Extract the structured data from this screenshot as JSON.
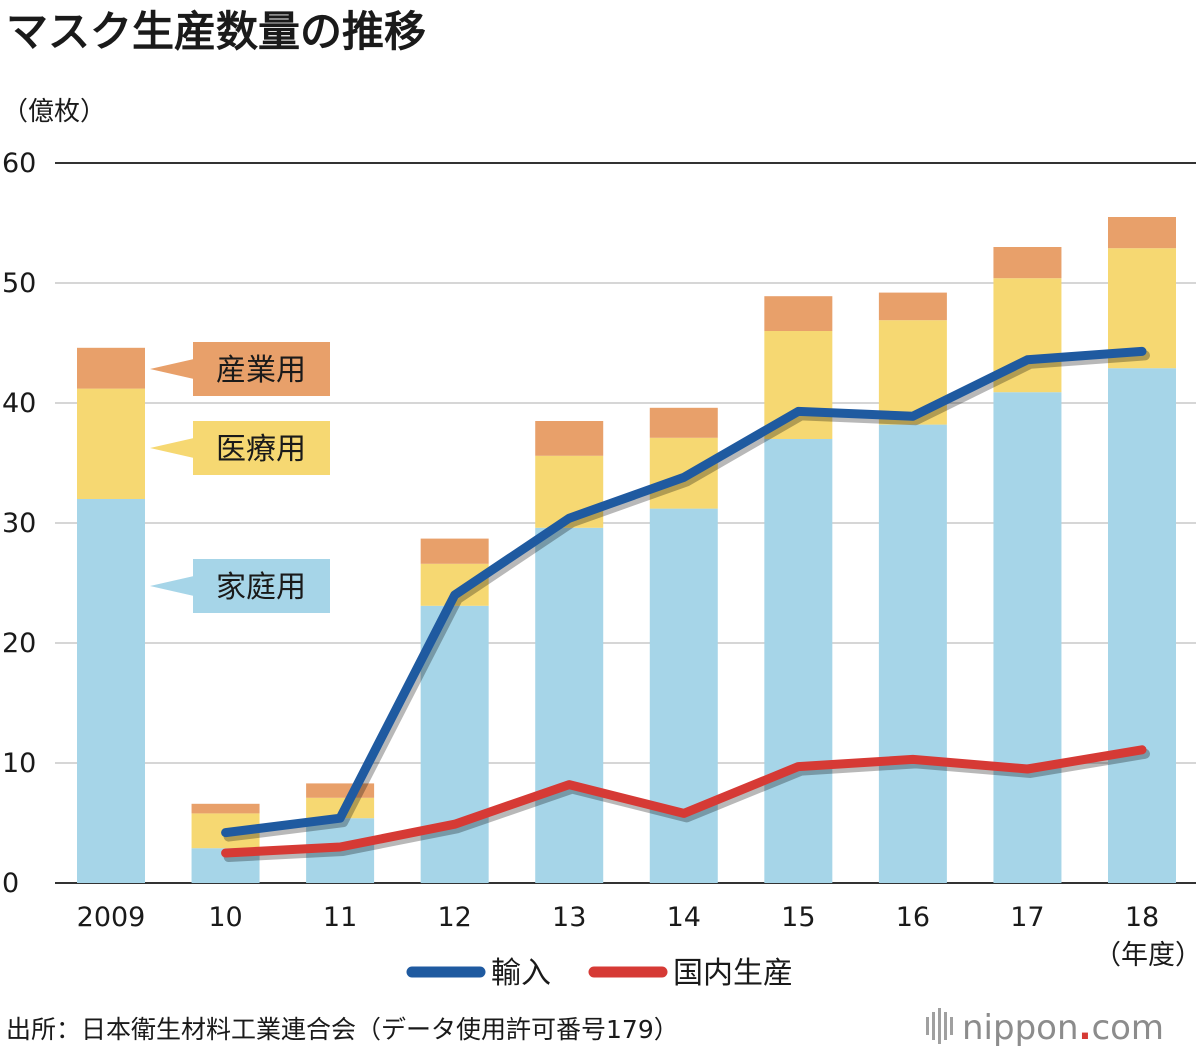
{
  "chart_data": {
    "type": "bar",
    "title": "マスク生産数量の推移",
    "ylabel": "（億枚）",
    "xlabel": "（年度）",
    "ylim": [
      0,
      60
    ],
    "yticks": [
      "0",
      "10",
      "20",
      "30",
      "40",
      "50",
      "60"
    ],
    "categories": [
      "2009",
      "10",
      "11",
      "12",
      "13",
      "14",
      "15",
      "16",
      "17",
      "18"
    ],
    "stacked_series": [
      {
        "name": "家庭用",
        "color": "#a6d5e8",
        "values": [
          32.0,
          2.9,
          5.4,
          23.1,
          29.6,
          31.2,
          37.0,
          38.2,
          40.9,
          42.9
        ]
      },
      {
        "name": "医療用",
        "color": "#f6d872",
        "values": [
          9.2,
          2.9,
          1.7,
          3.5,
          6.0,
          5.9,
          9.0,
          8.7,
          9.5,
          10.0
        ]
      },
      {
        "name": "産業用",
        "color": "#e8a06a",
        "values": [
          3.4,
          0.8,
          1.2,
          2.1,
          2.9,
          2.5,
          2.9,
          2.3,
          2.6,
          2.6
        ]
      }
    ],
    "line_series": [
      {
        "name": "輸入",
        "color": "#1f5aa0",
        "values": [
          null,
          4.2,
          5.4,
          24.0,
          30.4,
          33.8,
          39.3,
          38.9,
          43.6,
          44.3
        ]
      },
      {
        "name": "国内生産",
        "color": "#d63a35",
        "values": [
          null,
          2.5,
          3.0,
          4.9,
          8.2,
          5.8,
          9.7,
          10.3,
          9.5,
          11.1
        ]
      }
    ],
    "legend": {
      "bar_labels": [
        "産業用",
        "医療用",
        "家庭用"
      ],
      "line_labels": [
        "輸入",
        "国内生産"
      ]
    }
  },
  "footer": {
    "source": "出所：日本衛生材料工業連合会（データ使用許可番号179）",
    "brand_main": "nippon",
    "brand_dot": ".",
    "brand_suffix": "com"
  }
}
